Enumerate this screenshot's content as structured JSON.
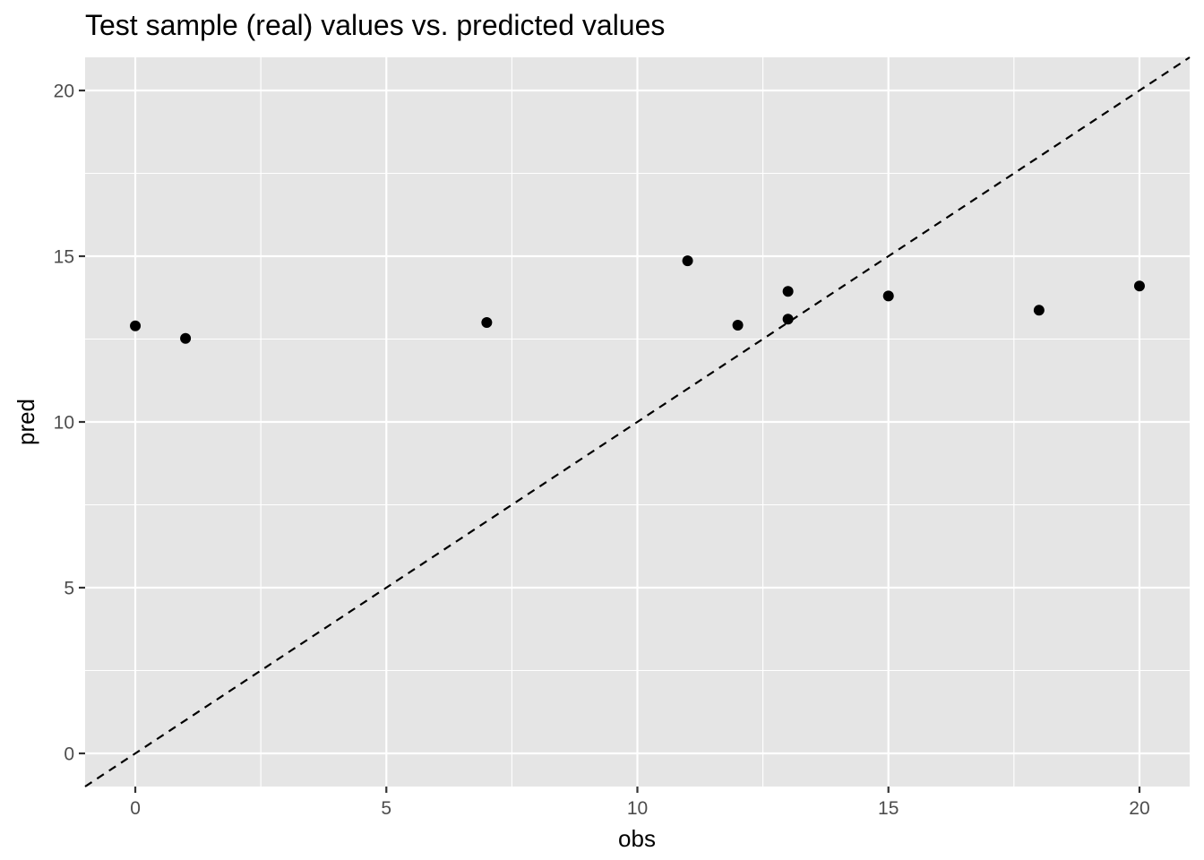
{
  "chart_data": {
    "type": "scatter",
    "title": "Test sample (real) values vs. predicted values",
    "xlabel": "obs",
    "ylabel": "pred",
    "xlim": [
      -1,
      21
    ],
    "ylim": [
      -1,
      21
    ],
    "x_ticks": [
      "0",
      "5",
      "10",
      "15",
      "20"
    ],
    "y_ticks": [
      "0",
      "5",
      "10",
      "15",
      "20"
    ],
    "grid": true,
    "reference_line": {
      "type": "identity",
      "style": "dashed",
      "color": "#000000"
    },
    "points": [
      {
        "x": 0,
        "y": 12.9
      },
      {
        "x": 1,
        "y": 12.52
      },
      {
        "x": 7,
        "y": 13.0
      },
      {
        "x": 11,
        "y": 14.86
      },
      {
        "x": 12,
        "y": 12.92
      },
      {
        "x": 13,
        "y": 13.94
      },
      {
        "x": 13,
        "y": 13.1
      },
      {
        "x": 15,
        "y": 13.8
      },
      {
        "x": 18,
        "y": 13.37
      },
      {
        "x": 20,
        "y": 14.1
      }
    ],
    "colors": {
      "panel": "#e5e5e5",
      "grid": "#ffffff",
      "point": "#000000",
      "tick_text": "#4d4d4d"
    }
  }
}
